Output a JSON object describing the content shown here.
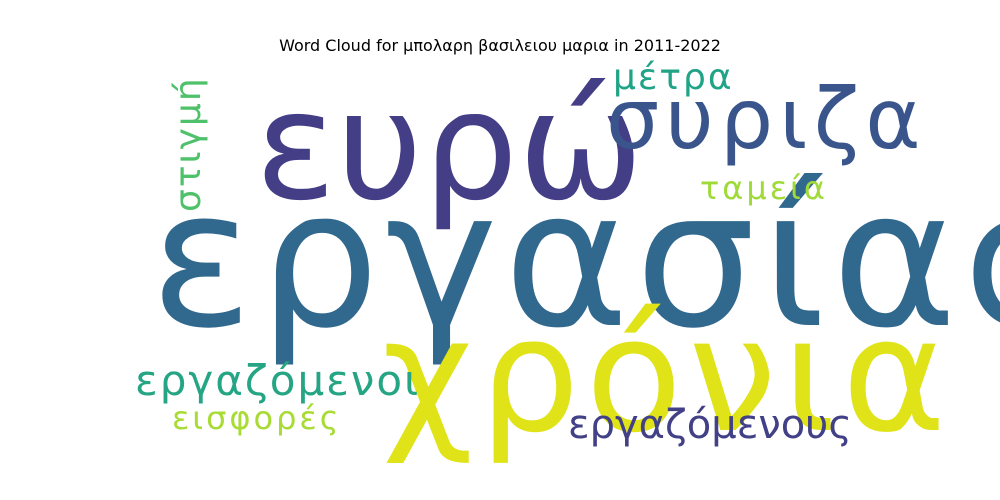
{
  "chart_data": {
    "type": "wordcloud",
    "title": "Word Cloud for μπολαρη βασιλειου μαρια in 2011-2022",
    "words": [
      {
        "text": "εργασίας",
        "weight": 1.0,
        "color": "#31688e",
        "orientation": "horizontal"
      },
      {
        "text": "χρόνια",
        "weight": 0.95,
        "color": "#dfe318",
        "orientation": "horizontal"
      },
      {
        "text": "ευρώ",
        "weight": 0.85,
        "color": "#433e85",
        "orientation": "horizontal"
      },
      {
        "text": "συριζα",
        "weight": 0.55,
        "color": "#39558c",
        "orientation": "horizontal"
      },
      {
        "text": "εργαζόμενοι",
        "weight": 0.28,
        "color": "#25a584",
        "orientation": "horizontal"
      },
      {
        "text": "εργαζόμενους",
        "weight": 0.26,
        "color": "#424086",
        "orientation": "horizontal"
      },
      {
        "text": "μέτρα",
        "weight": 0.24,
        "color": "#20a386",
        "orientation": "horizontal"
      },
      {
        "text": "στιγμή",
        "weight": 0.24,
        "color": "#4fc16b",
        "orientation": "vertical"
      },
      {
        "text": "ταμεία",
        "weight": 0.22,
        "color": "#a0da39",
        "orientation": "horizontal"
      },
      {
        "text": "εισφορές",
        "weight": 0.22,
        "color": "#a8db34",
        "orientation": "horizontal"
      }
    ]
  }
}
